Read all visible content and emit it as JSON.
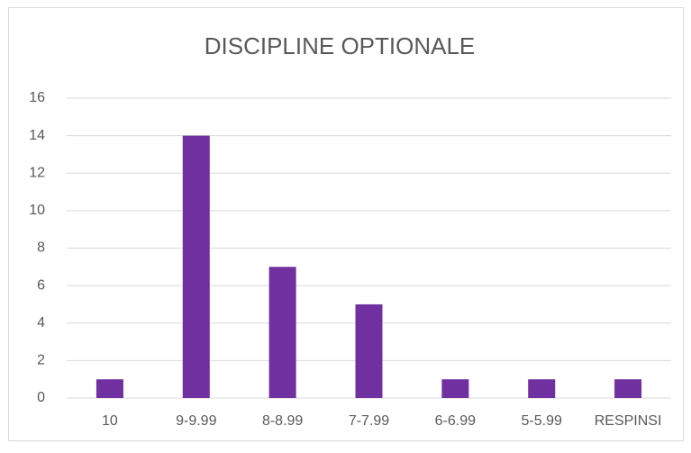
{
  "chart_data": {
    "type": "bar",
    "title": "DISCIPLINE OPTIONALE",
    "categories": [
      "10",
      "9-9.99",
      "8-8.99",
      "7-7.99",
      "6-6.99",
      "5-5.99",
      "RESPINSI"
    ],
    "values": [
      1,
      14,
      7,
      5,
      1,
      1,
      1
    ],
    "color": "#7030a0",
    "ylim": [
      0,
      16
    ],
    "yticks": [
      0,
      2,
      4,
      6,
      8,
      10,
      12,
      14,
      16
    ],
    "grid": true
  }
}
